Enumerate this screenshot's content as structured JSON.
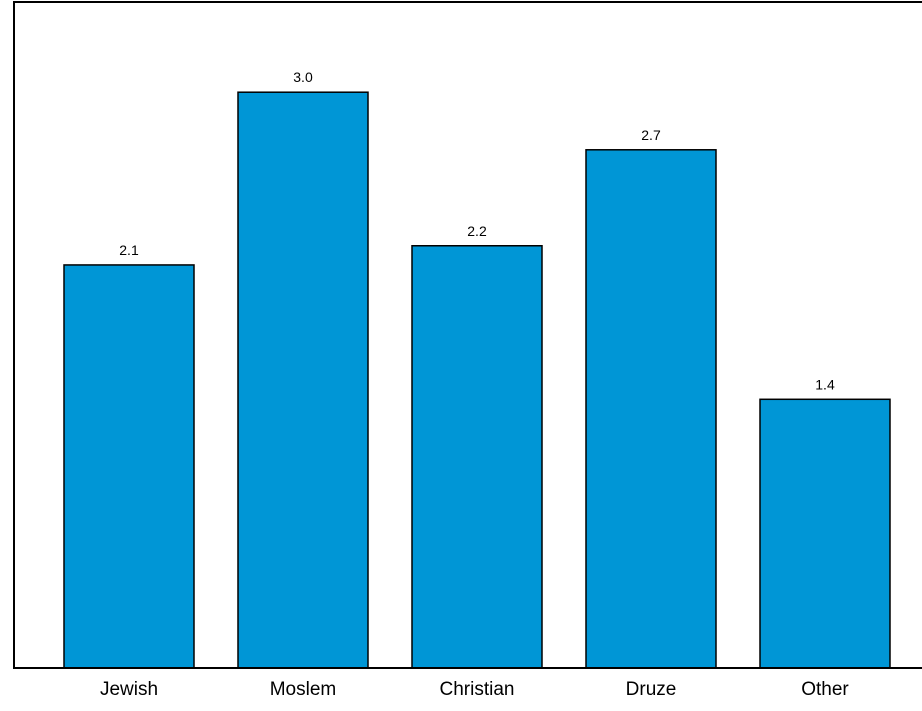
{
  "chart_data": {
    "type": "bar",
    "title": "",
    "xlabel": "",
    "ylabel": "",
    "categories": [
      "Jewish",
      "Moslem",
      "Christian",
      "Druze",
      "Other"
    ],
    "values": [
      2.1,
      3.0,
      2.2,
      2.7,
      1.4
    ],
    "value_labels": [
      "2.1",
      "3.0",
      "2.2",
      "2.7",
      "1.4"
    ],
    "ylim": [
      0,
      3.47
    ],
    "grid": false,
    "legend": "none",
    "bar_color": "#0096D6",
    "bar_edge_color": "#000000"
  }
}
